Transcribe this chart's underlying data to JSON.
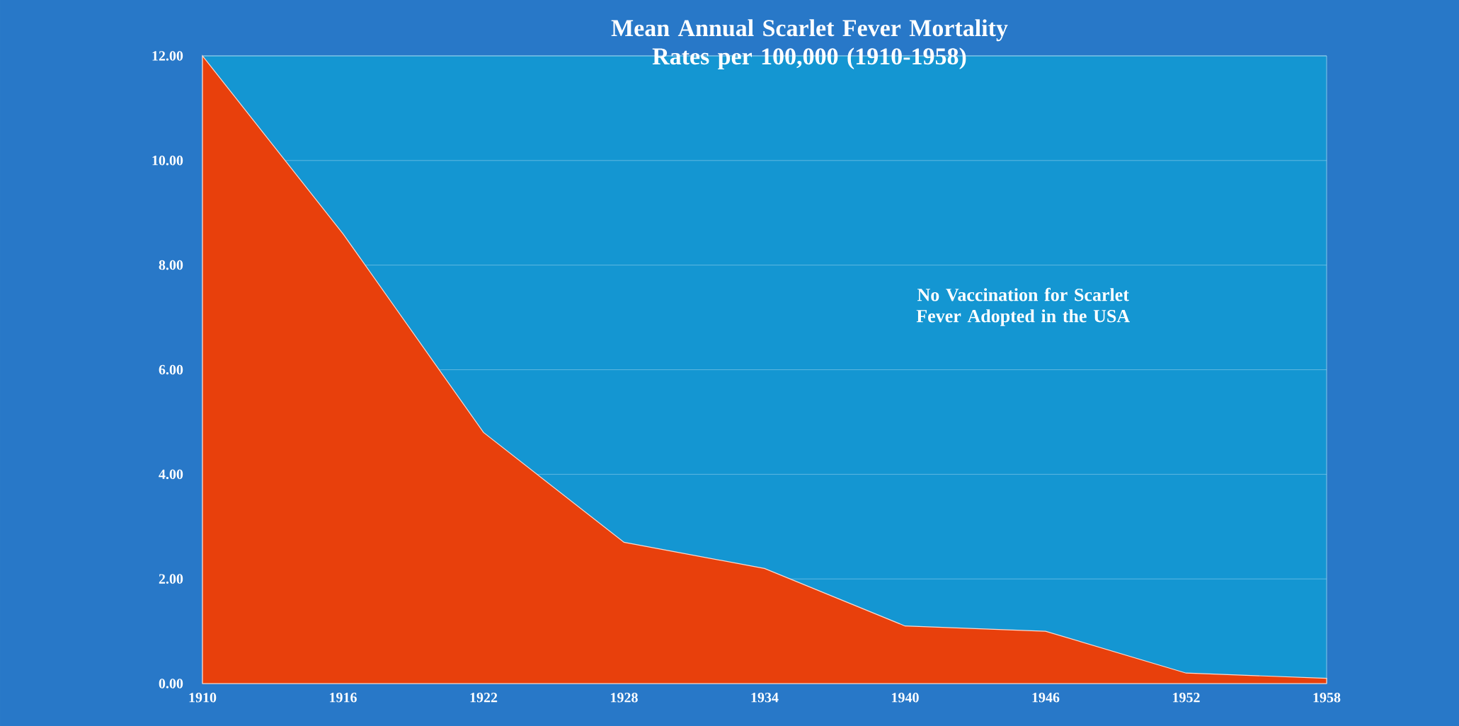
{
  "chart_data": {
    "type": "area",
    "title": "Mean Annual Scarlet Fever Mortality Rates per 100,000 (1910-1958)",
    "x": [
      1910,
      1916,
      1922,
      1928,
      1934,
      1940,
      1946,
      1952,
      1958
    ],
    "values": [
      12.0,
      8.6,
      4.8,
      2.7,
      2.2,
      1.1,
      1.0,
      0.2,
      0.1
    ],
    "color": "#e8400c",
    "xlim": [
      1910,
      1958
    ],
    "xticks": [
      1910,
      1916,
      1922,
      1928,
      1934,
      1940,
      1946,
      1952,
      1958
    ],
    "ylim": [
      0,
      12
    ],
    "yticks": [
      {
        "value": 0,
        "label": "0.00"
      },
      {
        "value": 2,
        "label": "2.00"
      },
      {
        "value": 4,
        "label": "4.00"
      },
      {
        "value": 6,
        "label": "6.00"
      },
      {
        "value": 8,
        "label": "8.00"
      },
      {
        "value": 10,
        "label": "10.00"
      },
      {
        "value": 12,
        "label": "12.00"
      }
    ],
    "grid": "y",
    "annotations": [
      "No Vaccination for Scarlet Fever Adopted in the USA"
    ]
  }
}
